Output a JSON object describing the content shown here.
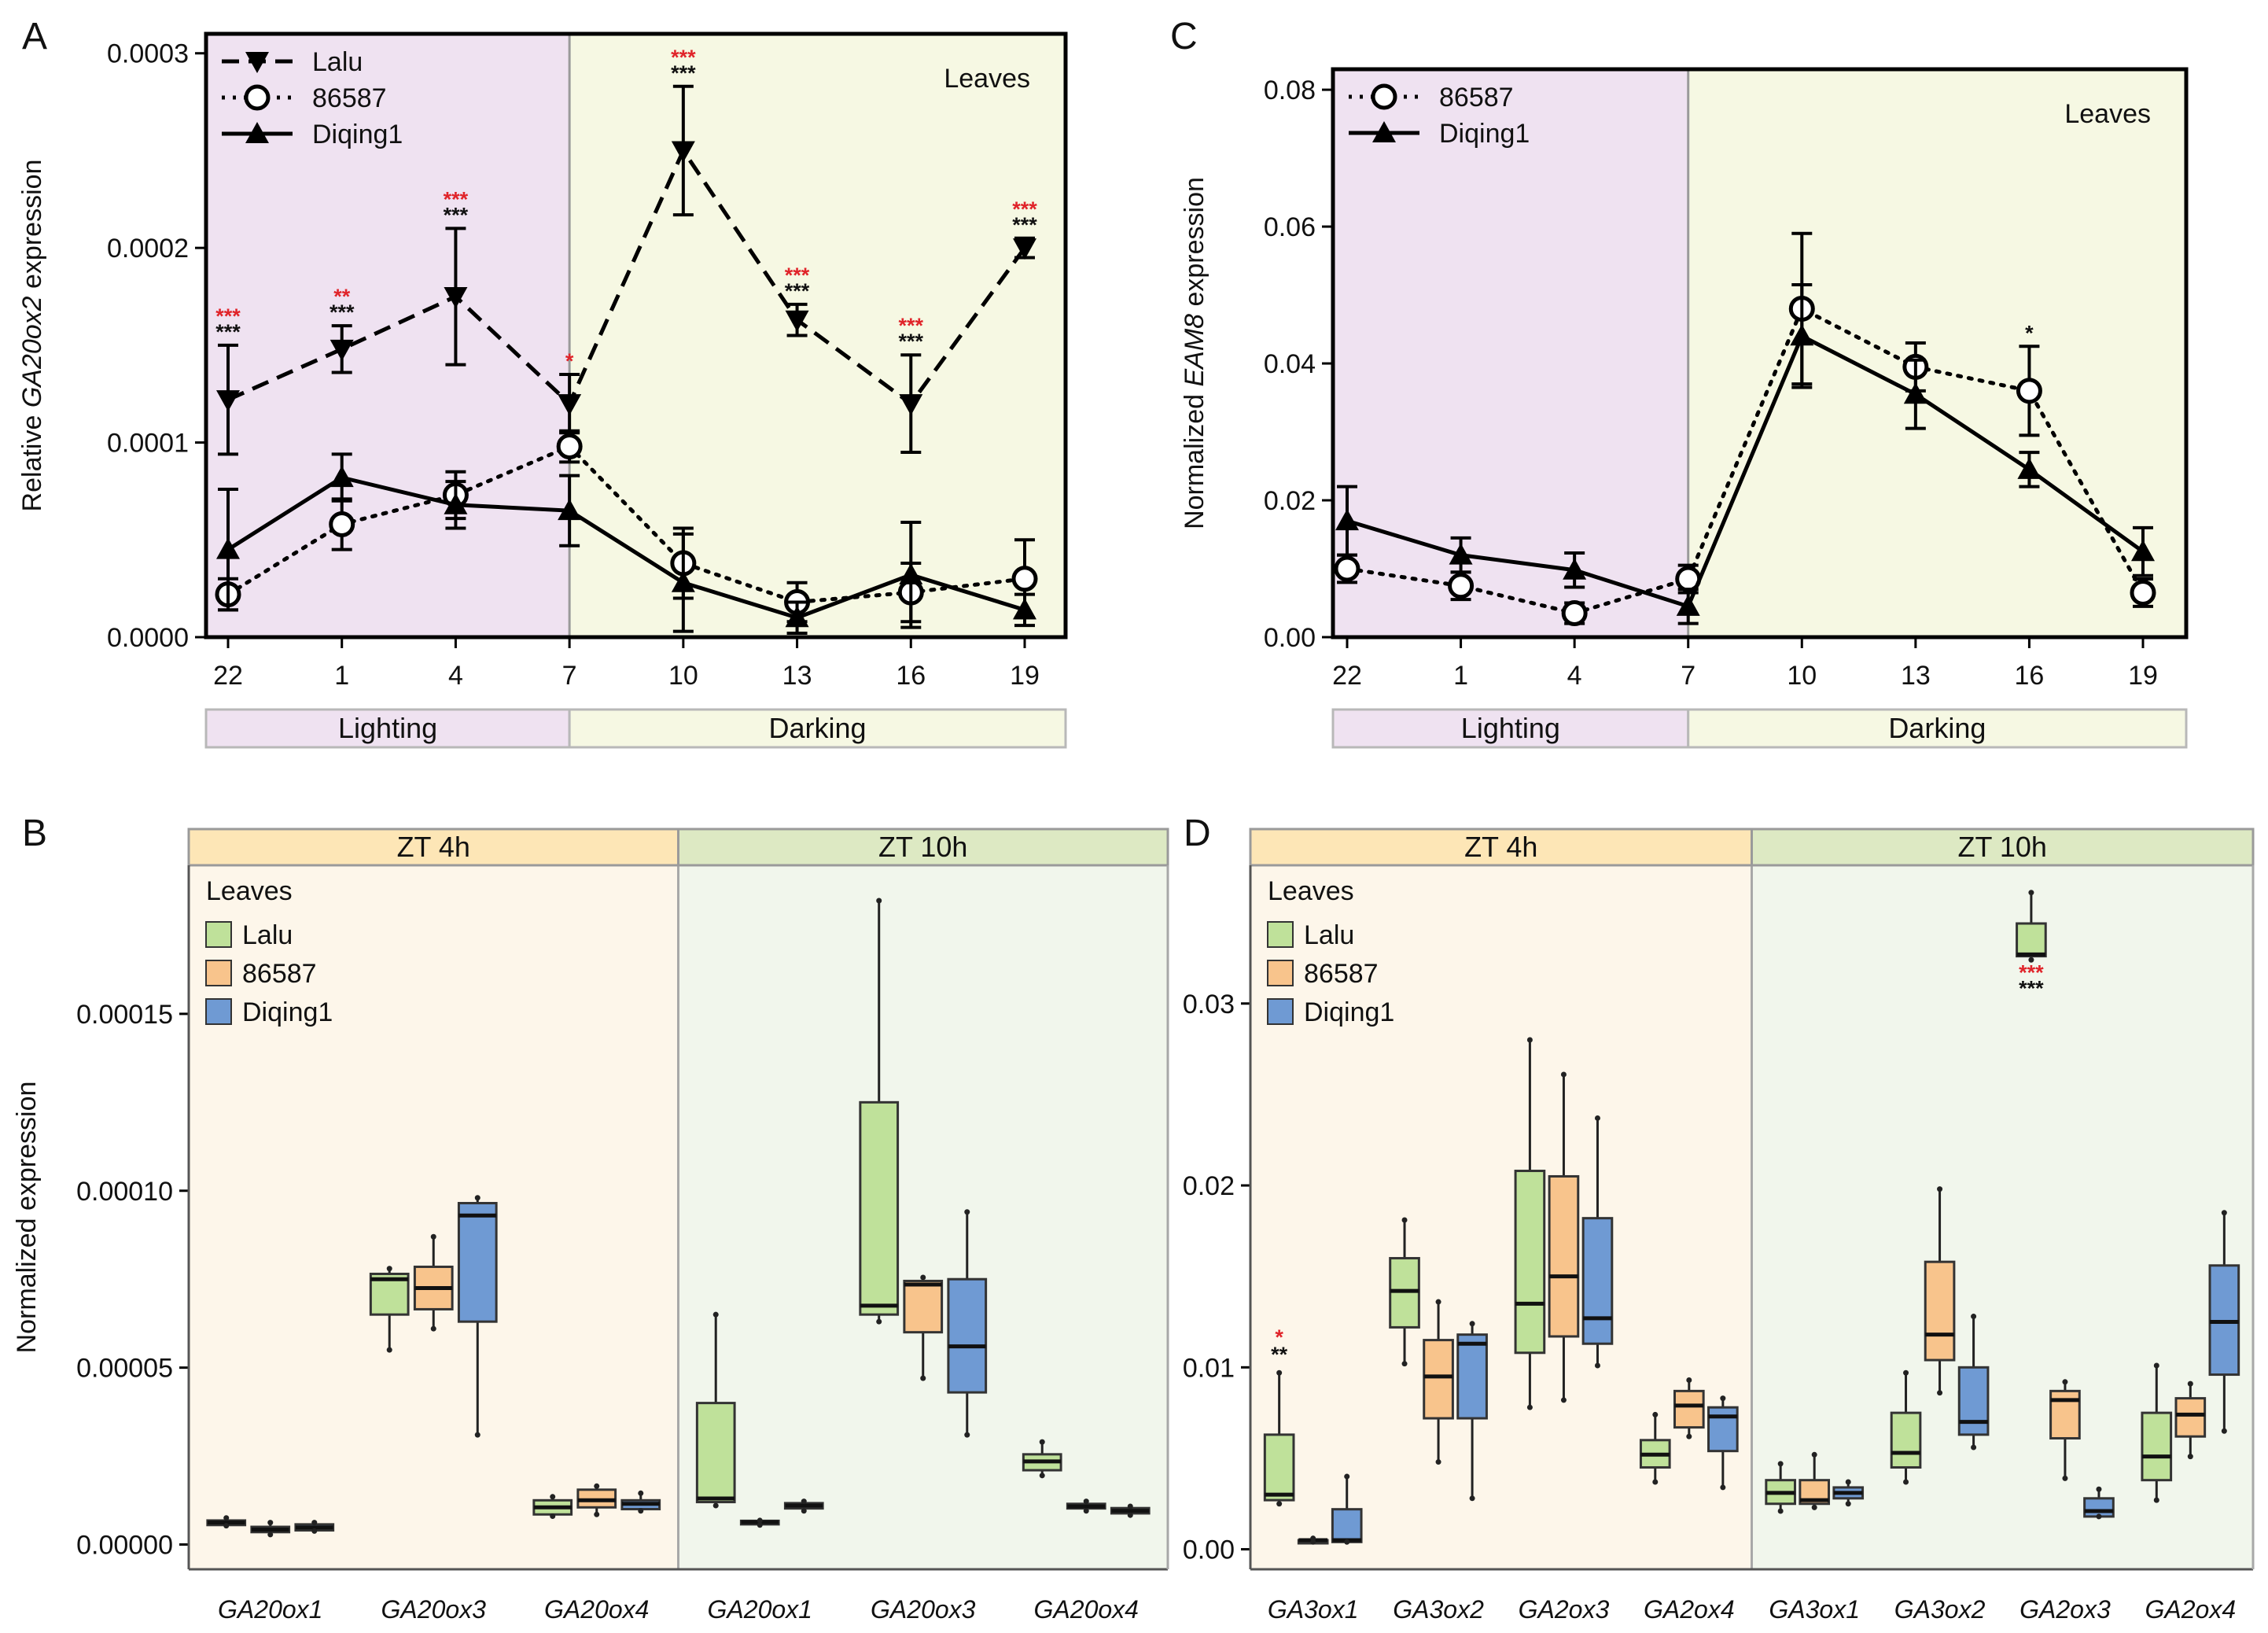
{
  "colors": {
    "lighting_bg": "#efe2f1",
    "darking_bg": "#f6f8e3",
    "zt4_header": "#fde6b6",
    "zt10_header": "#dde9c3",
    "zt4_bg": "#fdf6ea",
    "zt10_bg": "#f1f6ec",
    "lalu": "#bfe19a",
    "s86587": "#f8c48c",
    "diqing1": "#6f9ad3",
    "sig_red": "#e0242a",
    "sig_black": "#111111"
  },
  "chart_data": [
    {
      "panel": "A",
      "type": "line",
      "ylabel_pre": "Relative ",
      "ylabel_gene": "GA20ox2",
      "ylabel_post": " expression",
      "tissue_label": "Leaves",
      "categories": [
        "22",
        "1",
        "4",
        "7",
        "10",
        "13",
        "16",
        "19"
      ],
      "ylim": [
        0,
        0.00031
      ],
      "yticks": [
        "0.0000",
        "0.0001",
        "0.0002",
        "0.0003"
      ],
      "ytick_values": [
        0,
        0.0001,
        0.0002,
        0.0003
      ],
      "light_phase_ends_at": "7",
      "band_labels": [
        "Lighting",
        "Darking"
      ],
      "series": [
        {
          "name": "Lalu",
          "marker": "triangle-down",
          "line": "dashed",
          "values": [
            0.000122,
            0.000148,
            0.000175,
            0.00012,
            0.00025,
            0.000163,
            0.00012,
            0.0002
          ],
          "errors": [
            2.8e-05,
            1.2e-05,
            3.5e-05,
            1.5e-05,
            3.3e-05,
            8e-06,
            2.5e-05,
            5e-06
          ]
        },
        {
          "name": "86587",
          "marker": "circle-open",
          "line": "dotted",
          "values": [
            2.2e-05,
            5.8e-05,
            7.3e-05,
            9.8e-05,
            3.8e-05,
            1.8e-05,
            2.3e-05,
            3e-05
          ],
          "errors": [
            8e-06,
            1.3e-05,
            1.2e-05,
            8e-06,
            1.8e-05,
            1e-05,
            1.5e-05,
            2e-05
          ]
        },
        {
          "name": "Diqing1",
          "marker": "triangle-up",
          "line": "solid",
          "values": [
            4.5e-05,
            8.2e-05,
            6.8e-05,
            6.5e-05,
            2.8e-05,
            1e-05,
            3.2e-05,
            1.4e-05
          ],
          "errors": [
            3.1e-05,
            1.2e-05,
            1.2e-05,
            1.8e-05,
            2.5e-05,
            8e-06,
            2.7e-05,
            8e-06
          ]
        }
      ],
      "significance": [
        {
          "category": "22",
          "red": "***",
          "black": "***"
        },
        {
          "category": "1",
          "red": "**",
          "black": "***"
        },
        {
          "category": "4",
          "red": "***",
          "black": "***"
        },
        {
          "category": "7",
          "red": "*",
          "black": ""
        },
        {
          "category": "10",
          "red": "***",
          "black": "***"
        },
        {
          "category": "13",
          "red": "***",
          "black": "***"
        },
        {
          "category": "16",
          "red": "***",
          "black": "***"
        },
        {
          "category": "19",
          "red": "***",
          "black": "***"
        }
      ]
    },
    {
      "panel": "C",
      "type": "line",
      "ylabel_pre": "Normalized ",
      "ylabel_gene": "EAM8",
      "ylabel_post": " expression",
      "tissue_label": "Leaves",
      "categories": [
        "22",
        "1",
        "4",
        "7",
        "10",
        "13",
        "16",
        "19"
      ],
      "ylim": [
        0,
        0.083
      ],
      "yticks": [
        "0.00",
        "0.02",
        "0.04",
        "0.06",
        "0.08"
      ],
      "ytick_values": [
        0,
        0.02,
        0.04,
        0.06,
        0.08
      ],
      "light_phase_ends_at": "7",
      "band_labels": [
        "Lighting",
        "Darking"
      ],
      "series": [
        {
          "name": "86587",
          "marker": "circle-open",
          "line": "dotted",
          "values": [
            0.01,
            0.0075,
            0.0035,
            0.0085,
            0.048,
            0.0395,
            0.036,
            0.0065
          ],
          "errors": [
            0.002,
            0.002,
            0.0015,
            0.002,
            0.011,
            0.0035,
            0.0065,
            0.002
          ]
        },
        {
          "name": "Diqing1",
          "marker": "triangle-up",
          "line": "solid",
          "values": [
            0.017,
            0.012,
            0.0098,
            0.0045,
            0.044,
            0.0355,
            0.0245,
            0.0125
          ],
          "errors": [
            0.005,
            0.0025,
            0.0025,
            0.0025,
            0.0075,
            0.005,
            0.0025,
            0.0035
          ]
        }
      ],
      "significance": [
        {
          "category": "16",
          "red": "",
          "black": "*"
        }
      ]
    },
    {
      "panel": "B",
      "type": "box",
      "ylabel": "Normalized expression",
      "legend_title": "Leaves",
      "ylim": [
        -7e-06,
        0.000192
      ],
      "yticks": [
        "0.00000",
        "0.00005",
        "0.00010",
        "0.00015"
      ],
      "ytick_values": [
        0,
        5e-05,
        0.0001,
        0.00015
      ],
      "groups": [
        "ZT 4h",
        "ZT 10h"
      ],
      "series_names": [
        "Lalu",
        "86587",
        "Diqing1"
      ],
      "genes": [
        "GA20ox1",
        "GA20ox3",
        "GA20ox4",
        "GA20ox1",
        "GA20ox3",
        "GA20ox4"
      ],
      "boxes": [
        [
          {
            "min": 5.3e-06,
            "q1": 5.5e-06,
            "median": 6.2e-06,
            "q3": 6.8e-06,
            "max": 7.5e-06
          },
          {
            "min": 2.8e-06,
            "q1": 3.5e-06,
            "median": 4.2e-06,
            "q3": 5e-06,
            "max": 6.2e-06
          },
          {
            "min": 3.8e-06,
            "q1": 4e-06,
            "median": 4.8e-06,
            "q3": 5.7e-06,
            "max": 6.2e-06
          }
        ],
        [
          {
            "min": 5.5e-05,
            "q1": 6.5e-05,
            "median": 7.5e-05,
            "q3": 7.65e-05,
            "max": 7.8e-05
          },
          {
            "min": 6.1e-05,
            "q1": 6.65e-05,
            "median": 7.25e-05,
            "q3": 7.85e-05,
            "max": 8.7e-05
          },
          {
            "min": 3.1e-05,
            "q1": 6.3e-05,
            "median": 9.3e-05,
            "q3": 9.65e-05,
            "max": 9.8e-05
          }
        ],
        [
          {
            "min": 8e-06,
            "q1": 8.5e-06,
            "median": 1.05e-05,
            "q3": 1.25e-05,
            "max": 1.35e-05
          },
          {
            "min": 8.5e-06,
            "q1": 1.05e-05,
            "median": 1.25e-05,
            "q3": 1.55e-05,
            "max": 1.65e-05
          },
          {
            "min": 9.5e-06,
            "q1": 1e-05,
            "median": 1.15e-05,
            "q3": 1.25e-05,
            "max": 1.45e-05
          }
        ],
        [
          {
            "min": 1.1e-05,
            "q1": 1.2e-05,
            "median": 1.3e-05,
            "q3": 4e-05,
            "max": 6.5e-05
          },
          {
            "min": 5.5e-06,
            "q1": 5.7e-06,
            "median": 6.3e-06,
            "q3": 6.7e-06,
            "max": 6.8e-06
          },
          {
            "min": 9.5e-06,
            "q1": 1.02e-05,
            "median": 1.1e-05,
            "q3": 1.17e-05,
            "max": 1.22e-05
          }
        ],
        [
          {
            "min": 6.3e-05,
            "q1": 6.5e-05,
            "median": 6.75e-05,
            "q3": 0.000125,
            "max": 0.000182
          },
          {
            "min": 4.7e-05,
            "q1": 6e-05,
            "median": 7.35e-05,
            "q3": 7.45e-05,
            "max": 7.55e-05
          },
          {
            "min": 3.1e-05,
            "q1": 4.3e-05,
            "median": 5.6e-05,
            "q3": 7.5e-05,
            "max": 9.4e-05
          }
        ],
        [
          {
            "min": 1.95e-05,
            "q1": 2.1e-05,
            "median": 2.35e-05,
            "q3": 2.55e-05,
            "max": 2.9e-05
          },
          {
            "min": 9.5e-06,
            "q1": 1.02e-05,
            "median": 1.08e-05,
            "q3": 1.15e-05,
            "max": 1.22e-05
          },
          {
            "min": 8.3e-06,
            "q1": 8.8e-06,
            "median": 9.5e-06,
            "q3": 1.03e-05,
            "max": 1.08e-05
          }
        ]
      ]
    },
    {
      "panel": "D",
      "type": "box",
      "ylabel": "",
      "legend_title": "Leaves",
      "ylim": [
        -0.0011,
        0.0376
      ],
      "yticks": [
        "0.00",
        "0.01",
        "0.02",
        "0.03"
      ],
      "ytick_values": [
        0,
        0.01,
        0.02,
        0.03
      ],
      "groups": [
        "ZT 4h",
        "ZT 10h"
      ],
      "series_names": [
        "Lalu",
        "86587",
        "Diqing1"
      ],
      "genes": [
        "GA3ox1",
        "GA3ox2",
        "GA2ox3",
        "GA2ox4",
        "GA3ox1",
        "GA3ox2",
        "GA2ox3",
        "GA2ox4"
      ],
      "boxes": [
        [
          {
            "min": 0.0025,
            "q1": 0.0027,
            "median": 0.003,
            "q3": 0.0063,
            "max": 0.0097
          },
          {
            "min": 0.0004,
            "q1": 0.0004,
            "median": 0.0005,
            "q3": 0.0005,
            "max": 0.0006
          },
          {
            "min": 0.0004,
            "q1": 0.0004,
            "median": 0.0005,
            "q3": 0.0022,
            "max": 0.004
          }
        ],
        [
          {
            "min": 0.0102,
            "q1": 0.0122,
            "median": 0.0142,
            "q3": 0.016,
            "max": 0.0181
          },
          {
            "min": 0.0048,
            "q1": 0.0072,
            "median": 0.0095,
            "q3": 0.0115,
            "max": 0.0136
          },
          {
            "min": 0.0028,
            "q1": 0.0072,
            "median": 0.0113,
            "q3": 0.0118,
            "max": 0.0124
          }
        ],
        [
          {
            "min": 0.0078,
            "q1": 0.0108,
            "median": 0.0135,
            "q3": 0.0208,
            "max": 0.028
          },
          {
            "min": 0.0082,
            "q1": 0.0117,
            "median": 0.015,
            "q3": 0.0205,
            "max": 0.0261
          },
          {
            "min": 0.0101,
            "q1": 0.0113,
            "median": 0.0127,
            "q3": 0.0182,
            "max": 0.0237
          }
        ],
        [
          {
            "min": 0.0037,
            "q1": 0.0045,
            "median": 0.0052,
            "q3": 0.006,
            "max": 0.0074
          },
          {
            "min": 0.0062,
            "q1": 0.0067,
            "median": 0.0079,
            "q3": 0.0087,
            "max": 0.0093
          },
          {
            "min": 0.0034,
            "q1": 0.0054,
            "median": 0.0073,
            "q3": 0.0078,
            "max": 0.0083
          }
        ],
        [
          {
            "min": 0.0021,
            "q1": 0.0025,
            "median": 0.0031,
            "q3": 0.0038,
            "max": 0.0047
          },
          {
            "min": 0.0023,
            "q1": 0.0025,
            "median": 0.0027,
            "q3": 0.0038,
            "max": 0.0052
          },
          {
            "min": 0.0025,
            "q1": 0.0028,
            "median": 0.0031,
            "q3": 0.0034,
            "max": 0.0037
          }
        ],
        [
          {
            "min": 0.0037,
            "q1": 0.0045,
            "median": 0.0053,
            "q3": 0.0075,
            "max": 0.0097
          },
          {
            "min": 0.0086,
            "q1": 0.0104,
            "median": 0.0118,
            "q3": 0.0158,
            "max": 0.0198
          },
          {
            "min": 0.0056,
            "q1": 0.0063,
            "median": 0.007,
            "q3": 0.01,
            "max": 0.0128
          }
        ],
        [
          {
            "min": 0.0324,
            "q1": 0.0326,
            "median": 0.0327,
            "q3": 0.0344,
            "max": 0.0361
          },
          {
            "min": 0.0039,
            "q1": 0.0061,
            "median": 0.0082,
            "q3": 0.0087,
            "max": 0.0092
          },
          {
            "min": 0.0018,
            "q1": 0.0018,
            "median": 0.0021,
            "q3": 0.0028,
            "max": 0.0033
          }
        ],
        [
          {
            "min": 0.0027,
            "q1": 0.0038,
            "median": 0.0051,
            "q3": 0.0075,
            "max": 0.0101
          },
          {
            "min": 0.0051,
            "q1": 0.0062,
            "median": 0.0074,
            "q3": 0.0083,
            "max": 0.0091
          },
          {
            "min": 0.0065,
            "q1": 0.0096,
            "median": 0.0125,
            "q3": 0.0156,
            "max": 0.0185
          }
        ]
      ],
      "significance": [
        {
          "gene_index": 0,
          "series": "Lalu",
          "red": "*",
          "black": "**"
        },
        {
          "gene_index": 6,
          "series": "Lalu",
          "red": "***",
          "black": "***"
        }
      ]
    }
  ]
}
